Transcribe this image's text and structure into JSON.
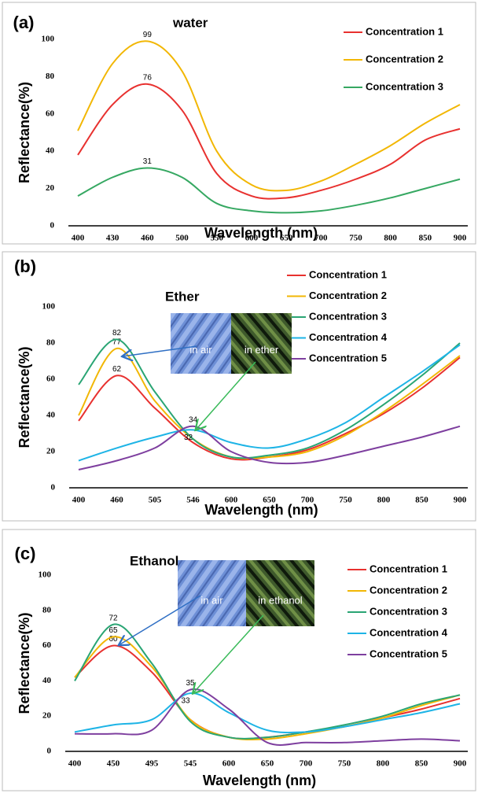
{
  "chart_data": [
    {
      "type": "line",
      "label": "(a)",
      "title": "water",
      "x_label": "Wavelength (nm)",
      "y_label": "Reflectance(%)",
      "categories": [
        "400",
        "430",
        "460",
        "500",
        "550",
        "600",
        "650",
        "700",
        "750",
        "800",
        "850",
        "900"
      ],
      "ylim": [
        0,
        100
      ],
      "yticks": [
        0,
        20,
        40,
        60,
        80,
        100
      ],
      "legend": "upper right",
      "series": [
        {
          "name": "Concentration 1",
          "color": "#e8312f",
          "values": [
            38,
            65,
            76,
            62,
            28,
            16,
            15,
            19,
            25,
            33,
            46,
            52
          ],
          "value_labels": [
            null,
            null,
            "76",
            null,
            null,
            null,
            null,
            null,
            null,
            null,
            null,
            null
          ]
        },
        {
          "name": "Concentration 2",
          "color": "#f2b705",
          "values": [
            51,
            87,
            99,
            83,
            40,
            22,
            19,
            24,
            33,
            43,
            55,
            65
          ],
          "value_labels": [
            null,
            null,
            "99",
            null,
            null,
            null,
            null,
            null,
            null,
            null,
            null,
            null
          ]
        },
        {
          "name": "Concentration 3",
          "color": "#36a862",
          "values": [
            16,
            26,
            31,
            26,
            12,
            8,
            7,
            8,
            11,
            15,
            20,
            25
          ],
          "value_labels": [
            null,
            null,
            "31",
            null,
            null,
            null,
            null,
            null,
            null,
            null,
            null,
            null
          ]
        }
      ]
    },
    {
      "type": "line",
      "label": "(b)",
      "title": "Ether",
      "x_label": "Wavelength (nm)",
      "y_label": "Reflectance(%)",
      "categories": [
        "400",
        "460",
        "505",
        "546",
        "600",
        "650",
        "700",
        "750",
        "800",
        "850",
        "900"
      ],
      "ylim": [
        0,
        100
      ],
      "yticks": [
        0,
        20,
        40,
        60,
        80,
        100
      ],
      "legend": "upper right",
      "insets": [
        "in air",
        "in ether"
      ],
      "series": [
        {
          "name": "Concentration 1",
          "color": "#e8312f",
          "values": [
            37,
            62,
            44,
            25,
            16,
            17,
            21,
            30,
            41,
            55,
            72
          ],
          "value_labels": [
            null,
            "62",
            null,
            null,
            null,
            null,
            null,
            null,
            null,
            null,
            null
          ]
        },
        {
          "name": "Concentration 2",
          "color": "#f2b705",
          "values": [
            40,
            77,
            48,
            27,
            17,
            17,
            20,
            29,
            42,
            57,
            73
          ],
          "value_labels": [
            null,
            "77",
            null,
            null,
            null,
            null,
            null,
            null,
            null,
            null,
            null
          ]
        },
        {
          "name": "Concentration 3",
          "color": "#2aa574",
          "values": [
            57,
            82,
            53,
            27,
            17,
            18,
            22,
            32,
            46,
            62,
            80
          ],
          "value_labels": [
            null,
            "82",
            null,
            null,
            null,
            null,
            null,
            null,
            null,
            null,
            null
          ]
        },
        {
          "name": "Concentration 4",
          "color": "#1eb4e6",
          "values": [
            15,
            22,
            28,
            32,
            25,
            22,
            27,
            36,
            50,
            64,
            79
          ],
          "value_labels": [
            null,
            null,
            null,
            "32",
            null,
            null,
            null,
            null,
            null,
            null,
            null
          ]
        },
        {
          "name": "Concentration 5",
          "color": "#7e3f9f",
          "values": [
            10,
            15,
            22,
            34,
            20,
            14,
            14,
            18,
            23,
            28,
            34
          ],
          "value_labels": [
            null,
            null,
            null,
            "34",
            null,
            null,
            null,
            null,
            null,
            null,
            null
          ]
        }
      ]
    },
    {
      "type": "line",
      "label": "(c)",
      "title": "Ethanol",
      "x_label": "Wavelength (nm)",
      "y_label": "Reflectance(%)",
      "categories": [
        "400",
        "450",
        "495",
        "545",
        "600",
        "650",
        "700",
        "750",
        "800",
        "850",
        "900"
      ],
      "ylim": [
        0,
        100
      ],
      "yticks": [
        0,
        20,
        40,
        60,
        80,
        100
      ],
      "legend": "upper right",
      "insets": [
        "in air",
        "in ethanol"
      ],
      "series": [
        {
          "name": "Concentration 1",
          "color": "#e8312f",
          "values": [
            42,
            60,
            45,
            18,
            8,
            8,
            11,
            14,
            19,
            24,
            30
          ],
          "value_labels": [
            null,
            "60",
            null,
            null,
            null,
            null,
            null,
            null,
            null,
            null,
            null
          ]
        },
        {
          "name": "Concentration 2",
          "color": "#f2b705",
          "values": [
            42,
            65,
            48,
            18,
            8,
            7,
            10,
            14,
            19,
            26,
            32
          ],
          "value_labels": [
            null,
            "65",
            null,
            null,
            null,
            null,
            null,
            null,
            null,
            null,
            null
          ]
        },
        {
          "name": "Concentration 3",
          "color": "#2aa574",
          "values": [
            40,
            72,
            50,
            17,
            8,
            8,
            11,
            15,
            20,
            27,
            32
          ],
          "value_labels": [
            null,
            "72",
            null,
            null,
            null,
            null,
            null,
            null,
            null,
            null,
            null
          ]
        },
        {
          "name": "Concentration 4",
          "color": "#1eb4e6",
          "values": [
            11,
            15,
            18,
            33,
            22,
            12,
            11,
            14,
            18,
            22,
            27
          ],
          "value_labels": [
            null,
            null,
            null,
            "33",
            null,
            null,
            null,
            null,
            null,
            null,
            null
          ]
        },
        {
          "name": "Concentration 5",
          "color": "#7e3f9f",
          "values": [
            10,
            10,
            12,
            35,
            24,
            5,
            5,
            5,
            6,
            7,
            6
          ],
          "value_labels": [
            null,
            null,
            null,
            "35",
            null,
            null,
            null,
            null,
            null,
            null,
            null
          ]
        }
      ]
    }
  ]
}
